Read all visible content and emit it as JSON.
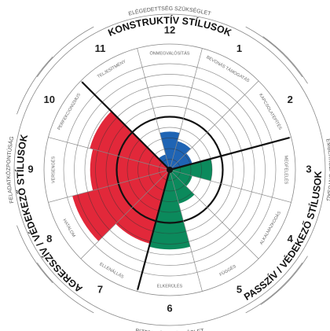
{
  "chart_data": {
    "type": "circumplex",
    "categories": [
      "1",
      "2",
      "3",
      "4",
      "5",
      "6",
      "7",
      "8",
      "9",
      "10",
      "11",
      "12"
    ],
    "sector_labels": [
      "BEVONÁS TÁMOGATÁS",
      "KAPCSOLATÉPÍTÉS",
      "MEGFELELÉS",
      "ALKALMAZKODÁS",
      "FÜGGÉS",
      "ELKERÜLÉS",
      "ELLENÁLLÁS",
      "HATALOM",
      "VERSENGÉS",
      "PERFEKCIONIZMUS",
      "TELJESÍTMÉNY",
      "ÖNMEGVALÓSÍTÁS"
    ],
    "series": [
      {
        "name": "KONSTRUKTÍV STÍLUSOK",
        "color": "#1f64b4",
        "values": [
          28,
          22,
          null,
          null,
          null,
          null,
          null,
          null,
          null,
          null,
          15,
          36
        ]
      },
      {
        "name": "PASSZÍV / VÉDEKEZŐ STÍLUSOK",
        "color": "#0b8a5c",
        "values": [
          null,
          null,
          40,
          22,
          33,
          75,
          null,
          null,
          null,
          null,
          null,
          null
        ]
      },
      {
        "name": "AGRESSZÍV / VÉDEKEZŐ STÍLUSOK",
        "color": "#e2283a",
        "values": [
          null,
          null,
          null,
          null,
          null,
          null,
          72,
          95,
          75,
          78,
          null,
          null
        ]
      }
    ],
    "rlim": [
      0,
      100
    ],
    "rticks": [
      10,
      20,
      30,
      40,
      50,
      60,
      70,
      80,
      90,
      100
    ],
    "reference_circle": 50,
    "outer_labels": {
      "top": "ELÉGEDETTSÉG SZÜKSÉGLET",
      "bottom": "BIZTONSÁG SZÜKSÉGLET",
      "left": "FELADATKÖZPONTÚSÁG",
      "right": "EMBERKÖZPONTÚSÁG"
    }
  }
}
